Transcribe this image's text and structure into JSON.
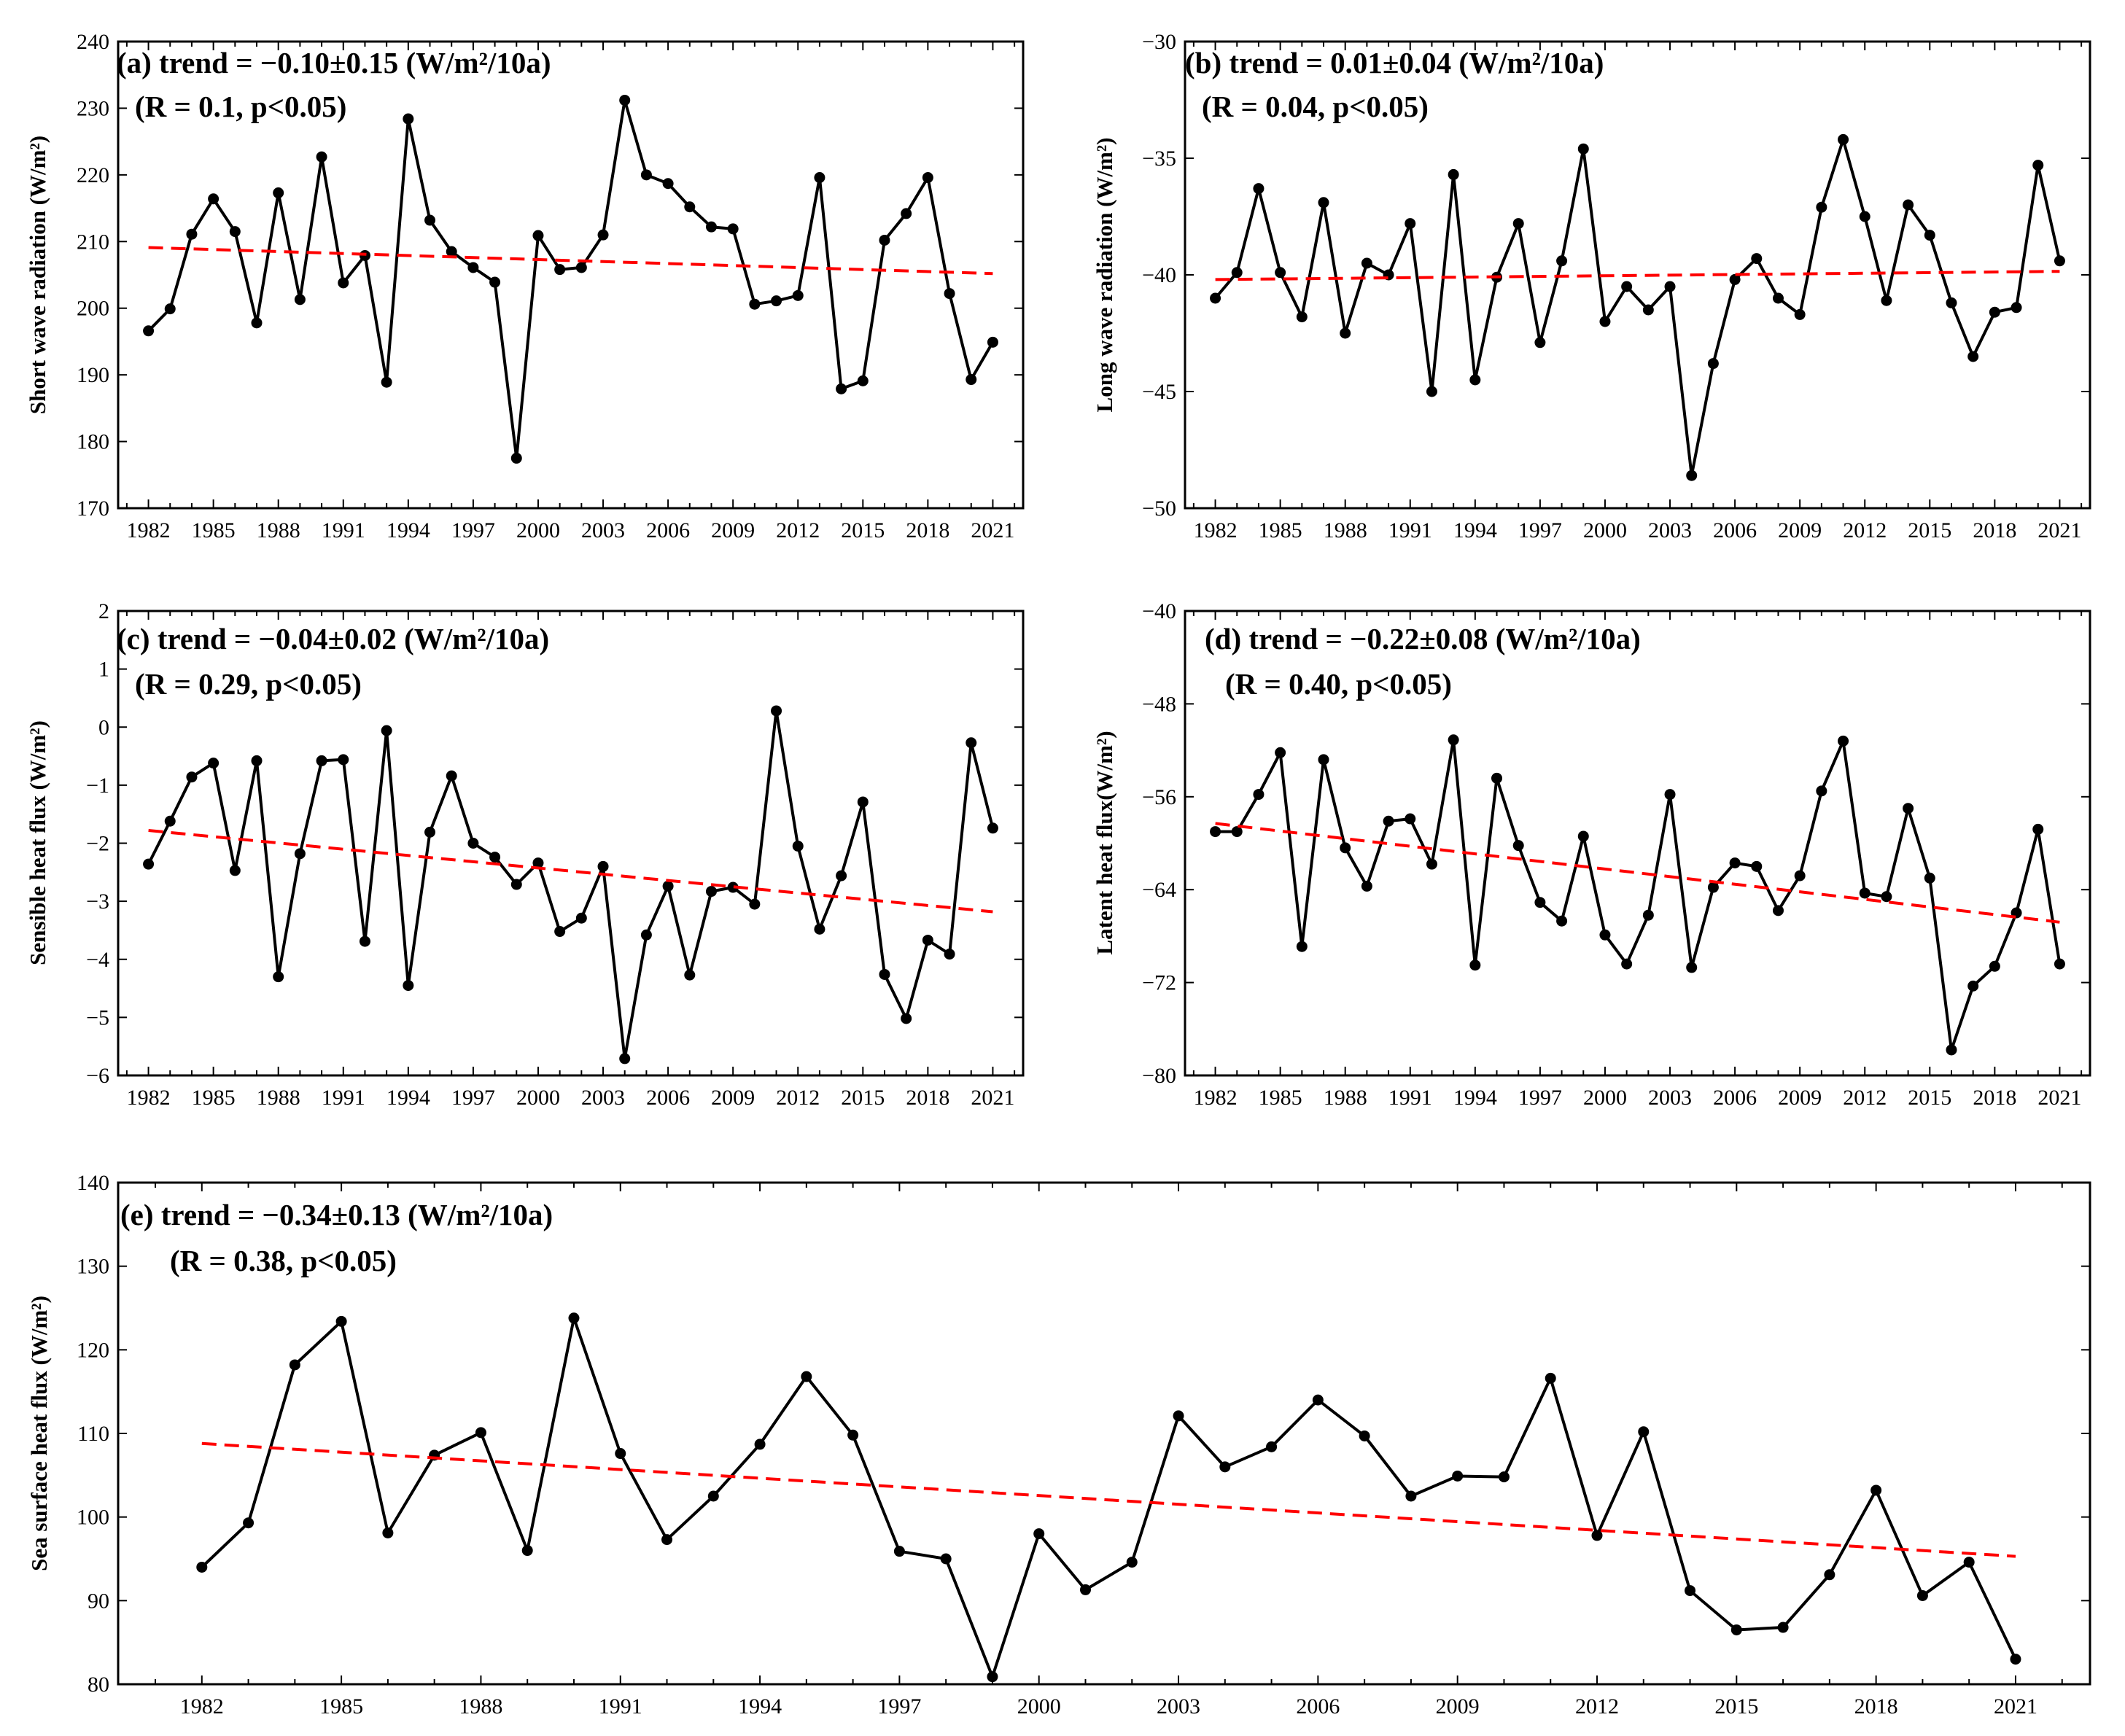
{
  "chart_data": [
    {
      "id": "a",
      "type": "line",
      "annotation_line1": "(a)  trend = −0.10±0.15 (W/m²/10a)",
      "annotation_line2": "(R = 0.1, p<0.05)",
      "xlabel": "",
      "ylabel": "Short wave radiation (W/m²)",
      "xlim": [
        1980.6,
        2022.4
      ],
      "ylim": [
        170,
        240
      ],
      "yticks": [
        170,
        180,
        190,
        200,
        210,
        220,
        230,
        240
      ],
      "xticks": [
        1982,
        1985,
        1988,
        1991,
        1994,
        1997,
        2000,
        2003,
        2006,
        2009,
        2012,
        2015,
        2018,
        2021
      ],
      "series": [
        {
          "name": "Short wave radiation",
          "color": "#000000",
          "x": [
            1982,
            1983,
            1984,
            1985,
            1986,
            1987,
            1988,
            1989,
            1990,
            1991,
            1992,
            1993,
            1994,
            1995,
            1996,
            1997,
            1998,
            1999,
            2000,
            2001,
            2002,
            2003,
            2004,
            2005,
            2006,
            2007,
            2008,
            2009,
            2010,
            2011,
            2012,
            2013,
            2014,
            2015,
            2016,
            2017,
            2018,
            2019,
            2020,
            2021
          ],
          "values": [
            196.6,
            199.9,
            211.1,
            216.4,
            211.5,
            197.8,
            217.3,
            201.3,
            222.7,
            203.8,
            207.9,
            188.9,
            228.4,
            213.2,
            208.5,
            206.1,
            203.9,
            177.5,
            210.9,
            205.8,
            206.1,
            211.0,
            231.2,
            220.0,
            218.7,
            215.2,
            212.2,
            211.9,
            200.6,
            201.1,
            201.9,
            219.6,
            187.9,
            189.1,
            210.2,
            214.2,
            219.6,
            202.2,
            189.3,
            194.9
          ]
        },
        {
          "name": "trend",
          "color": "#ff0000",
          "dashed": true,
          "x": [
            1982,
            2021
          ],
          "values": [
            209.1,
            205.2
          ]
        }
      ]
    },
    {
      "id": "b",
      "type": "line",
      "annotation_line1": "(b)  trend = 0.01±0.04 (W/m²/10a)",
      "annotation_line2": "(R = 0.04, p<0.05)",
      "xlabel": "",
      "ylabel": "Long wave radiation (W/m²)",
      "xlim": [
        1980.6,
        2022.4
      ],
      "ylim": [
        -50,
        -30
      ],
      "yticks": [
        -50,
        -45,
        -40,
        -35,
        -30
      ],
      "xticks": [
        1982,
        1985,
        1988,
        1991,
        1994,
        1997,
        2000,
        2003,
        2006,
        2009,
        2012,
        2015,
        2018,
        2021
      ],
      "series": [
        {
          "name": "Long wave radiation",
          "color": "#000000",
          "x": [
            1982,
            1983,
            1984,
            1985,
            1986,
            1987,
            1988,
            1989,
            1990,
            1991,
            1992,
            1993,
            1994,
            1995,
            1996,
            1997,
            1998,
            1999,
            2000,
            2001,
            2002,
            2003,
            2004,
            2005,
            2006,
            2007,
            2008,
            2009,
            2010,
            2011,
            2012,
            2013,
            2014,
            2015,
            2016,
            2017,
            2018,
            2019,
            2020,
            2021
          ],
          "values": [
            -41.0,
            -39.9,
            -36.3,
            -39.9,
            -41.8,
            -36.9,
            -42.5,
            -39.5,
            -40.0,
            -37.8,
            -45.0,
            -35.7,
            -44.5,
            -40.1,
            -37.8,
            -42.9,
            -39.4,
            -34.6,
            -42.0,
            -40.5,
            -41.5,
            -40.5,
            -48.6,
            -43.8,
            -40.2,
            -39.3,
            -41.0,
            -41.7,
            -37.1,
            -34.2,
            -37.5,
            -41.1,
            -37.0,
            -38.3,
            -41.2,
            -43.5,
            -41.6,
            -41.4,
            -35.3,
            -39.4
          ]
        },
        {
          "name": "trend",
          "color": "#ff0000",
          "dashed": true,
          "x": [
            1982,
            2021
          ],
          "values": [
            -40.2,
            -39.85
          ]
        }
      ]
    },
    {
      "id": "c",
      "type": "line",
      "annotation_line1": "(c)  trend = −0.04±0.02 (W/m²/10a)",
      "annotation_line2": "(R = 0.29, p<0.05)",
      "xlabel": "",
      "ylabel": "Sensible heat flux (W/m²)",
      "xlim": [
        1980.6,
        2022.4
      ],
      "ylim": [
        -6,
        2
      ],
      "yticks": [
        -6,
        -5,
        -4,
        -3,
        -2,
        -1,
        0,
        1,
        2
      ],
      "xticks": [
        1982,
        1985,
        1988,
        1991,
        1994,
        1997,
        2000,
        2003,
        2006,
        2009,
        2012,
        2015,
        2018,
        2021
      ],
      "series": [
        {
          "name": "Sensible heat flux",
          "color": "#000000",
          "x": [
            1982,
            1983,
            1984,
            1985,
            1986,
            1987,
            1988,
            1989,
            1990,
            1991,
            1992,
            1993,
            1994,
            1995,
            1996,
            1997,
            1998,
            1999,
            2000,
            2001,
            2002,
            2003,
            2004,
            2005,
            2006,
            2007,
            2008,
            2009,
            2010,
            2011,
            2012,
            2013,
            2014,
            2015,
            2016,
            2017,
            2018,
            2019,
            2020,
            2021
          ],
          "values": [
            -2.36,
            -1.62,
            -0.86,
            -0.62,
            -2.47,
            -0.58,
            -4.3,
            -2.18,
            -0.58,
            -0.56,
            -3.69,
            -0.06,
            -4.45,
            -1.81,
            -0.84,
            -2.0,
            -2.24,
            -2.71,
            -2.34,
            -3.52,
            -3.29,
            -2.4,
            -5.71,
            -3.58,
            -2.74,
            -4.27,
            -2.83,
            -2.76,
            -3.05,
            0.28,
            -2.05,
            -3.48,
            -2.56,
            -1.29,
            -4.26,
            -5.02,
            -3.67,
            -3.91,
            -0.27,
            -1.74
          ]
        },
        {
          "name": "trend",
          "color": "#ff0000",
          "dashed": true,
          "x": [
            1982,
            2021
          ],
          "values": [
            -1.78,
            -3.18
          ]
        }
      ]
    },
    {
      "id": "d",
      "type": "line",
      "annotation_line1": "(d)  trend = −0.22±0.08 (W/m²/10a)",
      "annotation_line2": "(R = 0.40, p<0.05)",
      "xlabel": "",
      "ylabel": "Latent heat flux(W/m²)",
      "xlim": [
        1980.6,
        2022.4
      ],
      "ylim": [
        -80,
        -40
      ],
      "yticks": [
        -80,
        -72,
        -64,
        -56,
        -48,
        -40
      ],
      "xticks": [
        1982,
        1985,
        1988,
        1991,
        1994,
        1997,
        2000,
        2003,
        2006,
        2009,
        2012,
        2015,
        2018,
        2021
      ],
      "series": [
        {
          "name": "Latent heat flux",
          "color": "#000000",
          "x": [
            1982,
            1983,
            1984,
            1985,
            1986,
            1987,
            1988,
            1989,
            1990,
            1991,
            1992,
            1993,
            1994,
            1995,
            1996,
            1997,
            1998,
            1999,
            2000,
            2001,
            2002,
            2003,
            2004,
            2005,
            2006,
            2007,
            2008,
            2009,
            2010,
            2011,
            2012,
            2013,
            2014,
            2015,
            2016,
            2017,
            2018,
            2019,
            2020,
            2021
          ],
          "values": [
            -59.0,
            -59.0,
            -55.8,
            -52.2,
            -68.9,
            -52.8,
            -60.4,
            -63.7,
            -58.1,
            -57.9,
            -61.8,
            -51.1,
            -70.5,
            -54.4,
            -60.2,
            -65.1,
            -66.7,
            -59.4,
            -67.9,
            -70.4,
            -66.2,
            -55.8,
            -70.7,
            -63.8,
            -61.7,
            -62.0,
            -65.8,
            -62.8,
            -55.5,
            -51.2,
            -64.3,
            -64.6,
            -57.0,
            -63.0,
            -77.8,
            -72.3,
            -70.6,
            -66.0,
            -58.8,
            -70.4
          ]
        },
        {
          "name": "trend",
          "color": "#ff0000",
          "dashed": true,
          "x": [
            1982,
            2021
          ],
          "values": [
            -58.3,
            -66.8
          ]
        }
      ]
    },
    {
      "id": "e",
      "type": "line",
      "annotation_line1": "(e)  trend = −0.34±0.13 (W/m²/10a)",
      "annotation_line2": "(R = 0.38, p<0.05)",
      "xlabel": "",
      "ylabel": "Sea surface heat flux (W/m²)",
      "xlim": [
        1980.2,
        2022.6
      ],
      "ylim": [
        80,
        140
      ],
      "yticks": [
        80,
        90,
        100,
        110,
        120,
        130,
        140
      ],
      "xticks": [
        1982,
        1985,
        1988,
        1991,
        1994,
        1997,
        2000,
        2003,
        2006,
        2009,
        2012,
        2015,
        2018,
        2021
      ],
      "series": [
        {
          "name": "Sea surface heat flux",
          "color": "#000000",
          "x": [
            1982,
            1983,
            1984,
            1985,
            1986,
            1987,
            1988,
            1989,
            1990,
            1991,
            1992,
            1993,
            1994,
            1995,
            1996,
            1997,
            1998,
            1999,
            2000,
            2001,
            2002,
            2003,
            2004,
            2005,
            2006,
            2007,
            2008,
            2009,
            2010,
            2011,
            2012,
            2013,
            2014,
            2015,
            2016,
            2017,
            2018,
            2019,
            2020,
            2021
          ],
          "values": [
            94.0,
            99.3,
            118.2,
            123.4,
            98.1,
            107.4,
            110.1,
            96.0,
            123.8,
            107.6,
            97.3,
            102.5,
            108.7,
            116.8,
            109.8,
            95.9,
            95.0,
            80.9,
            98.0,
            91.3,
            94.6,
            112.1,
            106.0,
            108.4,
            114.0,
            109.7,
            102.5,
            104.9,
            104.8,
            116.6,
            97.8,
            110.2,
            91.2,
            86.5,
            86.8,
            93.1,
            103.2,
            90.6,
            94.6,
            83.0
          ]
        },
        {
          "name": "trend",
          "color": "#ff0000",
          "dashed": true,
          "x": [
            1982,
            2021
          ],
          "values": [
            108.8,
            95.3
          ]
        }
      ]
    }
  ]
}
